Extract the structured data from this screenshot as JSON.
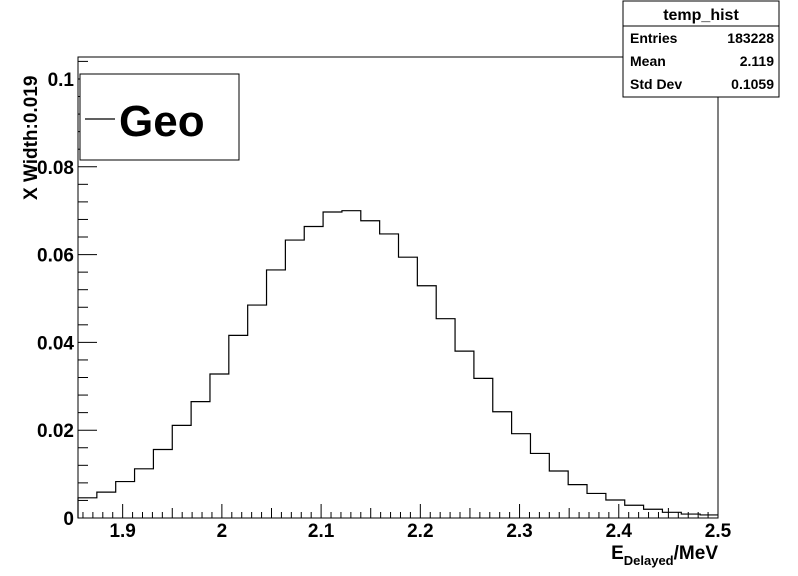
{
  "chart_data": {
    "type": "bar",
    "style": "step-histogram",
    "title": "",
    "xlabel": {
      "main": "E",
      "subscript": "Delayed",
      "suffix": "/MeV"
    },
    "ylabel": "X Width:0.019",
    "xlim": [
      1.855,
      2.5
    ],
    "ylim": [
      0,
      0.105
    ],
    "grid": false,
    "x_ticks": [
      1.9,
      2.0,
      2.1,
      2.2,
      2.3,
      2.4,
      2.5
    ],
    "x_tick_labels": [
      "1.9",
      "2",
      "2.1",
      "2.2",
      "2.3",
      "2.4",
      "2.5"
    ],
    "y_ticks": [
      0,
      0.02,
      0.04,
      0.06,
      0.08,
      0.1
    ],
    "y_tick_labels": [
      "0",
      "0.02",
      "0.04",
      "0.06",
      "0.08",
      "0.1"
    ],
    "bin_edges": [
      1.855,
      1.874,
      1.893,
      1.912,
      1.931,
      1.95,
      1.969,
      1.988,
      2.007,
      2.026,
      2.045,
      2.064,
      2.083,
      2.102,
      2.121,
      2.14,
      2.159,
      2.178,
      2.197,
      2.216,
      2.235,
      2.254,
      2.273,
      2.292,
      2.311,
      2.33,
      2.349,
      2.368,
      2.387,
      2.406,
      2.425,
      2.444,
      2.463,
      2.482,
      2.501
    ],
    "values": [
      0.0046,
      0.0059,
      0.0083,
      0.0112,
      0.0156,
      0.0211,
      0.0265,
      0.0328,
      0.0416,
      0.0485,
      0.0565,
      0.0633,
      0.0664,
      0.0697,
      0.07,
      0.0677,
      0.0647,
      0.0594,
      0.0529,
      0.0454,
      0.038,
      0.0318,
      0.0242,
      0.0192,
      0.0147,
      0.0107,
      0.0076,
      0.0056,
      0.0041,
      0.0029,
      0.002,
      0.0013,
      0.0009,
      0.0007
    ],
    "series": [
      {
        "name": "Geo"
      }
    ],
    "legend": {
      "position": "top-left",
      "entries": [
        "Geo"
      ]
    },
    "stats_box": {
      "title": "temp_hist",
      "rows": [
        {
          "label": "Entries",
          "value": "183228"
        },
        {
          "label": "Mean",
          "value": "2.119"
        },
        {
          "label": "Std Dev",
          "value": "0.1059"
        }
      ],
      "position": "top-right"
    },
    "colors": {
      "line": "#000000",
      "background": "#ffffff"
    }
  }
}
